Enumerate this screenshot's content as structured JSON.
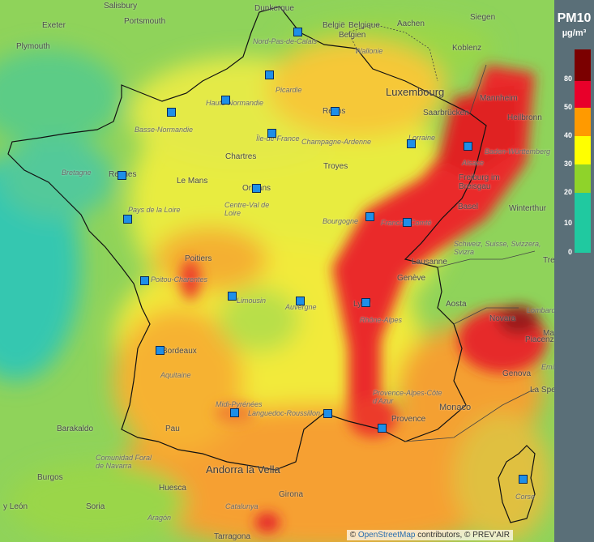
{
  "legend": {
    "title": "PM10",
    "unit": "µg/m³",
    "ticks": [
      "80",
      "50",
      "40",
      "30",
      "20",
      "10",
      "0"
    ],
    "colors": [
      "#7b0000",
      "#e8002a",
      "#ff9a00",
      "#ffff00",
      "#8fd32a",
      "#20c9a0"
    ]
  },
  "attribution": {
    "prefix": "© ",
    "osm": "OpenStreetMap",
    "suffix": " contributors, © PREV'AIR"
  },
  "places": {
    "salisbury": "Salisbury",
    "exeter": "Exeter",
    "portsmouth": "Portsmouth",
    "plymouth": "Plymouth",
    "dunkerque": "Dunkerque",
    "belgie": "België",
    "belgique": "Belgique",
    "belgien": "Belgien",
    "aachen": "Aachen",
    "siegen": "Siegen",
    "koblenz": "Koblenz",
    "wallonie": "Wallonie",
    "nordpasdecalais": "Nord-Pas-de-Calais",
    "picardie": "Picardie",
    "luxembourg": "Luxembourg",
    "mannheim": "Mannheim",
    "heilbronn": "Heilbronn",
    "saarbrucken": "Saarbrücken",
    "reims": "Reims",
    "hautenormandie": "Haute-Normandie",
    "bassenormandie": "Basse-Normandie",
    "iledefrance": "Île-de-France",
    "champagne": "Champagne-Ardenne",
    "lorraine": "Lorraine",
    "alsace": "Alsace",
    "badenwurttemberg": "Baden-Württemberg",
    "bretagne": "Bretagne",
    "rennes": "Rennes",
    "chartres": "Chartres",
    "lemans": "Le Mans",
    "troyes": "Troyes",
    "freiburg": "Freiburg im Breisgau",
    "orleans": "Orléans",
    "centre": "Centre-Val de Loire",
    "paysdelaloire": "Pays de la Loire",
    "bourgogne": "Bourgogne",
    "franchecomte": "Franche-Comté",
    "basel": "Basel",
    "winterthur": "Winterthur",
    "schweiz": "Schweiz, Suisse, Svizzera, Svizra",
    "poitiers": "Poitiers",
    "poitoucharentes": "Poitou-Charentes",
    "lausanne": "Lausanne",
    "geneve": "Genève",
    "limousin": "Limousin",
    "auvergne": "Auvergne",
    "lyon": "Lyon",
    "rhonealpes": "Rhône-Alpes",
    "aosta": "Aosta",
    "novara": "Novara",
    "lombardia": "Lombardia",
    "trento": "Trento",
    "mantova": "Mantova",
    "emilia": "Emilia-Romagna",
    "bordeaux": "Bordeaux",
    "piacenza": "Piacenza",
    "genova": "Genova",
    "aquitaine": "Aquitaine",
    "laspezia": "La Spezia",
    "midipyrenees": "Midi-Pyrénées",
    "languedoc": "Languedoc-Roussillon",
    "paca": "Provence-Alpes-Côte d'Azur",
    "monaco": "Monaco",
    "barakaldo": "Barakaldo",
    "pau": "Pau",
    "provence": "Provence",
    "navarra": "Comunidad Foral de Navarra",
    "andorra": "Andorra la Vella",
    "burgos": "Burgos",
    "huesca": "Huesca",
    "soria": "Soria",
    "leon": "y León",
    "aragon": "Aragón",
    "girona": "Girona",
    "catalunya": "Catalunya",
    "tarragona": "Tarragona",
    "corse": "Corse"
  }
}
